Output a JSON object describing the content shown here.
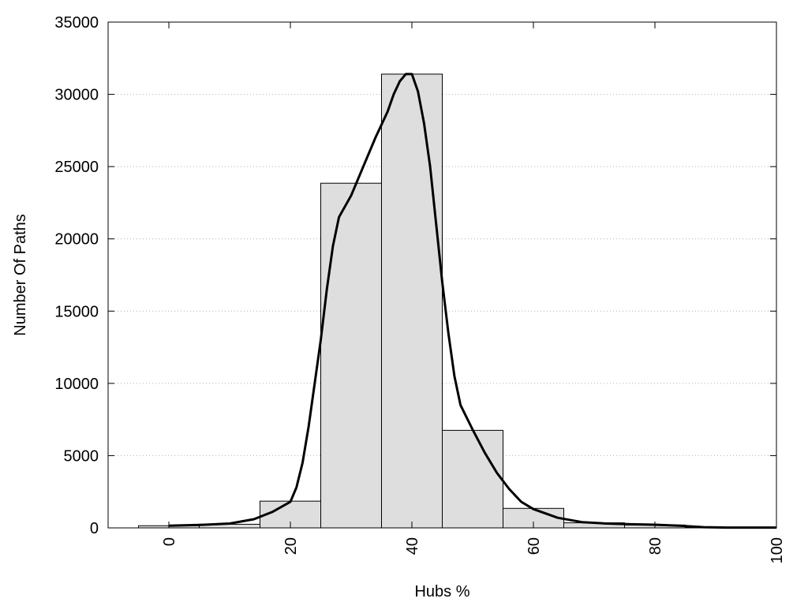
{
  "chart_data": {
    "type": "bar",
    "xlabel": "Hubs %",
    "ylabel": "Number Of Paths",
    "xlim": [
      -10,
      100
    ],
    "ylim": [
      0,
      35000
    ],
    "grid": true,
    "x_ticks": [
      0,
      20,
      40,
      60,
      80,
      100
    ],
    "y_ticks": [
      0,
      5000,
      10000,
      15000,
      20000,
      25000,
      30000,
      35000
    ],
    "bins": [
      {
        "x0": -5,
        "x1": 5,
        "value": 150
      },
      {
        "x0": 5,
        "x1": 15,
        "value": 250
      },
      {
        "x0": 15,
        "x1": 25,
        "value": 1850
      },
      {
        "x0": 25,
        "x1": 35,
        "value": 23850
      },
      {
        "x0": 35,
        "x1": 45,
        "value": 31400
      },
      {
        "x0": 45,
        "x1": 55,
        "value": 6750
      },
      {
        "x0": 55,
        "x1": 65,
        "value": 1350
      },
      {
        "x0": 65,
        "x1": 75,
        "value": 350
      },
      {
        "x0": 75,
        "x1": 85,
        "value": 200
      },
      {
        "x0": 85,
        "x1": 95,
        "value": 50
      },
      {
        "x0": 95,
        "x1": 100,
        "value": 30
      }
    ],
    "curve": [
      [
        0,
        150
      ],
      [
        5,
        200
      ],
      [
        10,
        300
      ],
      [
        14,
        600
      ],
      [
        17,
        1100
      ],
      [
        20,
        1800
      ],
      [
        21,
        2800
      ],
      [
        22,
        4500
      ],
      [
        23,
        7000
      ],
      [
        24,
        10000
      ],
      [
        25,
        13000
      ],
      [
        26,
        16500
      ],
      [
        27,
        19500
      ],
      [
        28,
        21500
      ],
      [
        30,
        23000
      ],
      [
        32,
        25000
      ],
      [
        34,
        27000
      ],
      [
        36,
        28800
      ],
      [
        37,
        30000
      ],
      [
        38,
        30900
      ],
      [
        39,
        31400
      ],
      [
        40,
        31400
      ],
      [
        41,
        30200
      ],
      [
        42,
        28000
      ],
      [
        43,
        25000
      ],
      [
        44,
        21000
      ],
      [
        45,
        17000
      ],
      [
        46,
        13500
      ],
      [
        47,
        10500
      ],
      [
        48,
        8500
      ],
      [
        50,
        6800
      ],
      [
        52,
        5200
      ],
      [
        54,
        3800
      ],
      [
        56,
        2700
      ],
      [
        58,
        1800
      ],
      [
        60,
        1300
      ],
      [
        64,
        700
      ],
      [
        68,
        400
      ],
      [
        72,
        300
      ],
      [
        76,
        250
      ],
      [
        80,
        220
      ],
      [
        84,
        150
      ],
      [
        88,
        50
      ],
      [
        92,
        20
      ],
      [
        100,
        20
      ]
    ]
  }
}
